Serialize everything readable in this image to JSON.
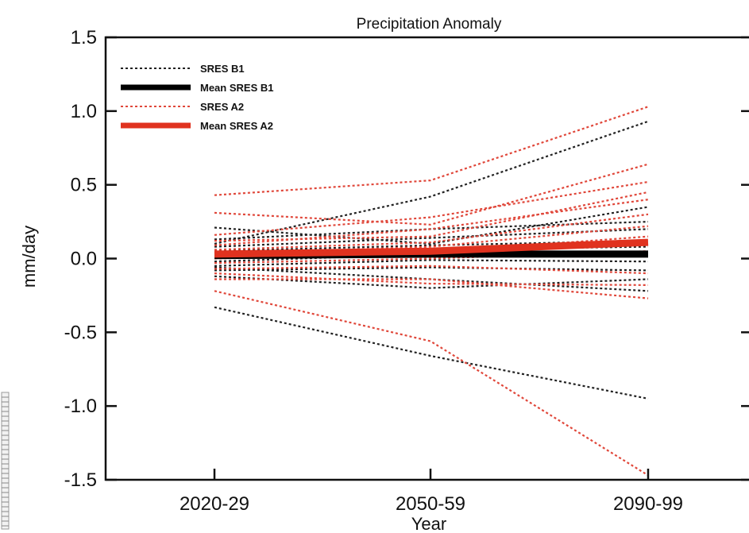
{
  "chart_data": {
    "type": "line",
    "title": "Precipitation Anomaly",
    "xlabel": "Year",
    "ylabel": "mm/day",
    "categories": [
      "2020-29",
      "2050-59",
      "2090-99"
    ],
    "ylim": [
      -1.5,
      1.5
    ],
    "yticks": [
      -1.5,
      -1.0,
      -0.5,
      0.0,
      0.5,
      1.0,
      1.5
    ],
    "ytick_labels": [
      "-1.5",
      "-1.0",
      "-0.5",
      "0.0",
      "0.5",
      "1.0",
      "1.5"
    ],
    "grid": false,
    "legend_position": "top-left",
    "legend": [
      {
        "label": "SRES B1",
        "color": "#222222",
        "style": "dotted"
      },
      {
        "label": "Mean SRES B1",
        "color": "#000000",
        "style": "solid"
      },
      {
        "label": "SRES A2",
        "color": "#e0473a",
        "style": "dotted"
      },
      {
        "label": "Mean SRES A2",
        "color": "#e0321f",
        "style": "solid"
      }
    ],
    "series_groups": [
      {
        "legend": "SRES B1",
        "color": "#222222",
        "style": "dotted",
        "members": [
          [
            0.1,
            0.42,
            0.93
          ],
          [
            0.21,
            0.1,
            0.35
          ],
          [
            0.13,
            0.2,
            0.25
          ],
          [
            0.08,
            0.14,
            0.2
          ],
          [
            0.05,
            0.09,
            0.12
          ],
          [
            0.02,
            0.06,
            0.08
          ],
          [
            -0.02,
            0.03,
            0.04
          ],
          [
            -0.05,
            -0.01,
            -0.02
          ],
          [
            -0.08,
            -0.06,
            -0.08
          ],
          [
            -0.12,
            -0.2,
            -0.14
          ],
          [
            -0.06,
            -0.14,
            -0.22
          ],
          [
            -0.33,
            -0.66,
            -0.95
          ]
        ]
      },
      {
        "legend": "SRES A2",
        "color": "#e0473a",
        "style": "dotted",
        "members": [
          [
            0.43,
            0.53,
            1.03
          ],
          [
            0.31,
            0.23,
            0.64
          ],
          [
            0.16,
            0.28,
            0.52
          ],
          [
            0.12,
            0.15,
            0.45
          ],
          [
            0.09,
            0.2,
            0.4
          ],
          [
            0.06,
            0.11,
            0.3
          ],
          [
            0.03,
            0.08,
            0.22
          ],
          [
            0.0,
            0.04,
            0.15
          ],
          [
            -0.03,
            0.0,
            0.05
          ],
          [
            -0.07,
            -0.05,
            -0.1
          ],
          [
            -0.1,
            -0.17,
            -0.18
          ],
          [
            -0.14,
            -0.14,
            -0.27
          ],
          [
            -0.22,
            -0.56,
            -1.47
          ]
        ]
      }
    ],
    "series": [
      {
        "name": "Mean SRES B1",
        "values": [
          0.02,
          0.03,
          0.03
        ],
        "color": "#000000",
        "style": "solid"
      },
      {
        "name": "Mean SRES A2",
        "values": [
          0.03,
          0.05,
          0.11
        ],
        "color": "#e0321f",
        "style": "solid"
      }
    ]
  }
}
